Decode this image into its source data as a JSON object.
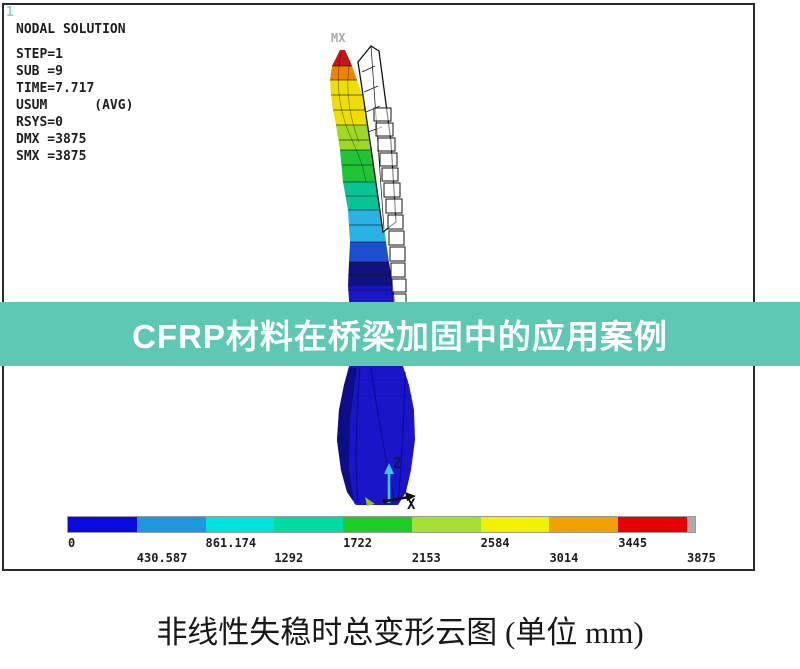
{
  "window": {
    "plot_id": "1"
  },
  "solution_info": {
    "lines": [
      "NODAL SOLUTION",
      "STEP=1",
      "SUB =9",
      "TIME=7.717",
      "USUM      (AVG)",
      "RSYS=0",
      "DMX =3875",
      "SMX =3875"
    ]
  },
  "labels": {
    "max_marker": "MX",
    "axis_vertical": "Z",
    "axis_horizontal": "X"
  },
  "banner": {
    "text": "CFRP材料在桥梁加固中的应用案例",
    "background": "#5EC8B2",
    "text_color": "#FFFFFF"
  },
  "caption": {
    "text": "非线性失稳时总变形云图 (单位 mm)"
  },
  "chart_data": {
    "type": "heatmap",
    "title": "非线性失稳时总变形云图 (单位 mm)",
    "subtitle": "CFRP材料在桥梁加固中的应用案例",
    "annotations": [
      "NODAL SOLUTION",
      "STEP=1",
      "SUB =9",
      "TIME=7.717",
      "USUM      (AVG)",
      "RSYS=0",
      "DMX =3875",
      "SMX =3875",
      "MX"
    ],
    "value_range": [
      0,
      3875
    ],
    "units": "mm",
    "legend_position": "bottom",
    "colorbar": {
      "orientation": "horizontal",
      "colors": [
        "#0A0AE0",
        "#1E96E0",
        "#00E2DC",
        "#00DCA0",
        "#1ECC28",
        "#A4E032",
        "#F2F200",
        "#F0A000",
        "#E80000"
      ],
      "end_cap_color": "#ACACAC",
      "boundary_values": [
        0,
        430.587,
        861.174,
        1292,
        1722,
        2153,
        2584,
        3014,
        3445,
        3875
      ],
      "tick_labels_top": [
        "0",
        "861.174",
        "1722",
        "2584",
        "3445"
      ],
      "tick_labels_bottom": [
        "430.587",
        "1292",
        "2153",
        "3014",
        "3875"
      ]
    }
  }
}
